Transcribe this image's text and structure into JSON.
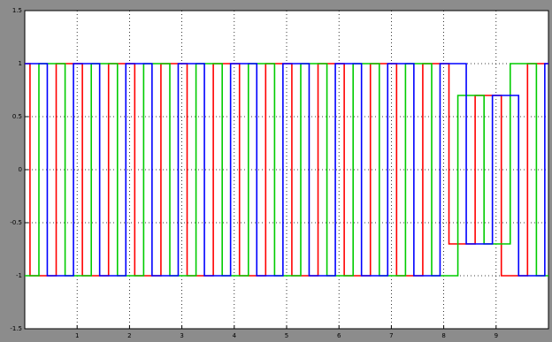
{
  "chart_data": {
    "type": "line",
    "xlim": [
      0,
      10
    ],
    "xticks": [
      1,
      2,
      3,
      4,
      5,
      6,
      7,
      8,
      9
    ],
    "ylim": [
      -1.5,
      1.5
    ],
    "yticks": [
      -1.5,
      -1,
      -0.5,
      0,
      0.5,
      1,
      1.5
    ],
    "grid": true,
    "series": [
      {
        "color": "#ff0000",
        "x": [
          0,
          0.1,
          0.1,
          0.6,
          0.6,
          1.1,
          1.1,
          1.6,
          1.6,
          2.1,
          2.1,
          2.6,
          2.6,
          3.1,
          3.1,
          3.6,
          3.6,
          4.1,
          4.1,
          4.6,
          4.6,
          5.1,
          5.1,
          5.6,
          5.6,
          6.1,
          6.1,
          6.6,
          6.6,
          7.1,
          7.1,
          7.6,
          7.6,
          8.1,
          8.1,
          8.6,
          8.6,
          9.1,
          9.1,
          9.6,
          9.6,
          10
        ],
        "values": [
          1,
          1,
          -1,
          -1,
          1,
          1,
          -1,
          -1,
          1,
          1,
          -1,
          -1,
          1,
          1,
          -1,
          -1,
          1,
          1,
          -1,
          -1,
          1,
          1,
          -1,
          -1,
          1,
          1,
          -1,
          -1,
          1,
          1,
          -1,
          -1,
          1,
          1,
          -0.7,
          -0.7,
          0.7,
          0.7,
          -1,
          -1,
          1,
          1
        ]
      },
      {
        "color": "#00cc00",
        "x": [
          0,
          0.27,
          0.27,
          0.77,
          0.77,
          1.27,
          1.27,
          1.77,
          1.77,
          2.27,
          2.27,
          2.77,
          2.77,
          3.27,
          3.27,
          3.77,
          3.77,
          4.27,
          4.27,
          4.77,
          4.77,
          5.27,
          5.27,
          5.77,
          5.77,
          6.27,
          6.27,
          6.77,
          6.77,
          7.27,
          7.27,
          7.77,
          7.77,
          8.27,
          8.27,
          8.77,
          8.77,
          9.27,
          9.27,
          9.77,
          9.77,
          10
        ],
        "values": [
          -1,
          -1,
          1,
          1,
          -1,
          -1,
          1,
          1,
          -1,
          -1,
          1,
          1,
          -1,
          -1,
          1,
          1,
          -1,
          -1,
          1,
          1,
          -1,
          -1,
          1,
          1,
          -1,
          -1,
          1,
          1,
          -1,
          -1,
          1,
          1,
          -1,
          -1,
          0.7,
          0.7,
          -0.7,
          -0.7,
          1,
          1,
          -1,
          -1
        ]
      },
      {
        "color": "#0000ff",
        "x": [
          0,
          0.43,
          0.43,
          0.93,
          0.93,
          1.43,
          1.43,
          1.93,
          1.93,
          2.43,
          2.43,
          2.93,
          2.93,
          3.43,
          3.43,
          3.93,
          3.93,
          4.43,
          4.43,
          4.93,
          4.93,
          5.43,
          5.43,
          5.93,
          5.93,
          6.43,
          6.43,
          6.93,
          6.93,
          7.43,
          7.43,
          7.93,
          7.93,
          8.43,
          8.43,
          8.93,
          8.93,
          9.43,
          9.43,
          9.93,
          9.93,
          10
        ],
        "values": [
          1,
          1,
          -1,
          -1,
          1,
          1,
          -1,
          -1,
          1,
          1,
          -1,
          -1,
          1,
          1,
          -1,
          -1,
          1,
          1,
          -1,
          -1,
          1,
          1,
          -1,
          -1,
          1,
          1,
          -1,
          -1,
          1,
          1,
          -1,
          -1,
          1,
          1,
          -0.7,
          -0.7,
          0.7,
          0.7,
          -1,
          -1,
          1,
          1
        ]
      }
    ]
  }
}
